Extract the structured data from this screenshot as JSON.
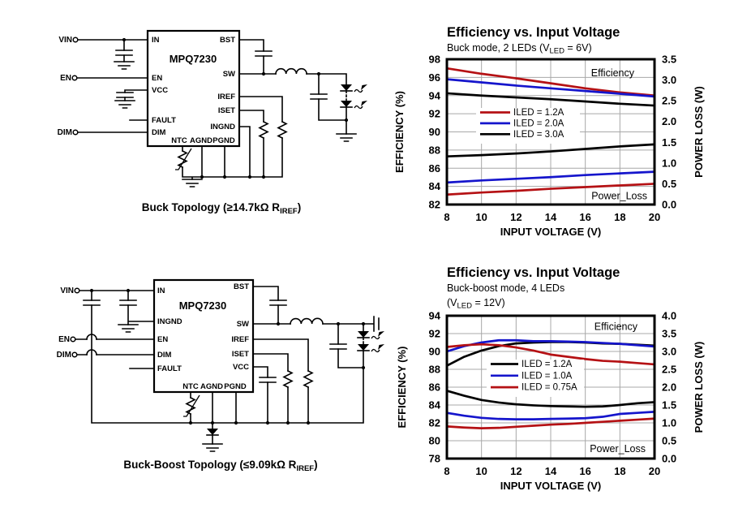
{
  "colors": {
    "red": "#b51114",
    "blue": "#1515cc",
    "black": "#000000",
    "grid": "#a8a8a8"
  },
  "circuits": {
    "buck": {
      "chip_label": "MPQ7230",
      "terminal_vin": "VIN",
      "terminal_en": "EN",
      "terminal_dim": "DIM",
      "pin_in": "IN",
      "pin_en": "EN",
      "pin_vcc": "VCC",
      "pin_fault": "FAULT",
      "pin_dim": "DIM",
      "pin_bst": "BST",
      "pin_sw": "SW",
      "pin_iref": "IREF",
      "pin_iset": "ISET",
      "pin_ingnd": "INGND",
      "pin_ntc": "NTC",
      "pin_agnd": "AGND",
      "pin_pgnd": "PGND",
      "caption_prefix": "Buck Topology (≥14.7kΩ R",
      "caption_sub": "IREF",
      "caption_suffix": ")"
    },
    "buck_boost": {
      "chip_label": "MPQ7230",
      "terminal_vin": "VIN",
      "terminal_en": "EN",
      "terminal_dim": "DIM",
      "pin_in": "IN",
      "pin_ingnd": "INGND",
      "pin_en": "EN",
      "pin_dim": "DIM",
      "pin_fault": "FAULT",
      "pin_bst": "BST",
      "pin_sw": "SW",
      "pin_iref": "IREF",
      "pin_iset": "ISET",
      "pin_vcc": "VCC",
      "pin_ntc": "NTC",
      "pin_agnd": "AGND",
      "pin_pgnd": "PGND",
      "caption_prefix": "Buck-Boost Topology (≤9.09kΩ R",
      "caption_sub": "IREF",
      "caption_suffix": ")"
    }
  },
  "chart_data": [
    {
      "type": "line",
      "title": "Efficiency vs. Input Voltage",
      "subtitle_pre": "Buck mode, 2 LEDs (V",
      "subtitle_sub": "LED",
      "subtitle_post": " = 6V)",
      "xlabel": "INPUT VOLTAGE (V)",
      "ylabel_left": "EFFICIENCY (%)",
      "ylabel_right": "POWER LOSS (W)",
      "xlim": [
        8,
        20
      ],
      "x_ticks": [
        8,
        10,
        12,
        14,
        16,
        18,
        20
      ],
      "ylim_left": [
        82,
        98
      ],
      "yticks_left": [
        82,
        84,
        86,
        88,
        90,
        92,
        94,
        96,
        98
      ],
      "ylim_right": [
        0,
        3.5
      ],
      "yticks_right": [
        0,
        0.5,
        1,
        1.5,
        2,
        2.5,
        3,
        3.5
      ],
      "yticks_right_labels": [
        "0.0",
        "0.5",
        "1.0",
        "1.5",
        "2.0",
        "2.5",
        "3.0",
        "3.5"
      ],
      "label_efficiency": "Efficiency",
      "label_power_loss": "Power_Loss",
      "grid": true,
      "legend_position": "mid-left-inside",
      "x": [
        8,
        10,
        12,
        14,
        16,
        18,
        20
      ],
      "efficiency_series": [
        {
          "name": "ILED = 1.2A",
          "color": "red",
          "values": [
            97.0,
            96.4,
            95.9,
            95.35,
            94.8,
            94.35,
            94.0
          ]
        },
        {
          "name": "ILED = 2.0A",
          "color": "blue",
          "values": [
            95.8,
            95.45,
            95.1,
            94.8,
            94.5,
            94.2,
            93.9
          ]
        },
        {
          "name": "ILED = 3.0A",
          "color": "black",
          "values": [
            94.25,
            94.0,
            93.8,
            93.6,
            93.35,
            93.1,
            92.9
          ]
        }
      ],
      "power_loss_series": [
        {
          "name": "ILED = 1.2A",
          "color": "red",
          "values": [
            0.24,
            0.29,
            0.33,
            0.38,
            0.42,
            0.46,
            0.5
          ]
        },
        {
          "name": "ILED = 2.0A",
          "color": "blue",
          "values": [
            0.53,
            0.58,
            0.62,
            0.66,
            0.71,
            0.75,
            0.79
          ]
        },
        {
          "name": "ILED = 3.0A",
          "color": "black",
          "values": [
            1.16,
            1.19,
            1.23,
            1.28,
            1.34,
            1.4,
            1.45
          ]
        }
      ]
    },
    {
      "type": "line",
      "title": "Efficiency vs. Input Voltage",
      "subtitle_line1": "Buck-boost mode, 4 LEDs",
      "subtitle_pre": "(V",
      "subtitle_sub": "LED",
      "subtitle_post": " = 12V)",
      "xlabel": "INPUT VOLTAGE (V)",
      "ylabel_left": "EFFICIENCY (%)",
      "ylabel_right": "POWER LOSS (W)",
      "xlim": [
        8,
        20
      ],
      "x_ticks": [
        8,
        10,
        12,
        14,
        16,
        18,
        20
      ],
      "ylim_left": [
        78,
        94
      ],
      "yticks_left": [
        78,
        80,
        82,
        84,
        86,
        88,
        90,
        92,
        94
      ],
      "ylim_right": [
        0,
        4
      ],
      "yticks_right": [
        0,
        0.5,
        1,
        1.5,
        2,
        2.5,
        3,
        3.5,
        4
      ],
      "yticks_right_labels": [
        "0.0",
        "0.5",
        "1.0",
        "1.5",
        "2.0",
        "2.5",
        "3.0",
        "3.5",
        "4.0"
      ],
      "label_efficiency": "Efficiency",
      "label_power_loss": "Power_Loss",
      "grid": true,
      "legend_position": "mid-left-inside",
      "x": [
        8,
        9,
        10,
        11,
        12,
        13,
        14,
        15,
        16,
        17,
        18,
        19,
        20
      ],
      "efficiency_series": [
        {
          "name": "ILED = 1.2A",
          "color": "black",
          "values": [
            88.4,
            89.4,
            90.1,
            90.6,
            90.9,
            91.0,
            91.05,
            91.05,
            91.0,
            90.9,
            90.85,
            90.75,
            90.65
          ]
        },
        {
          "name": "ILED = 1.0A",
          "color": "blue",
          "values": [
            90.0,
            90.6,
            91.0,
            91.25,
            91.25,
            91.15,
            91.15,
            91.1,
            91.05,
            90.95,
            90.85,
            90.7,
            90.55
          ]
        },
        {
          "name": "ILED = 0.75A",
          "color": "red",
          "values": [
            90.5,
            90.7,
            90.8,
            90.7,
            90.45,
            90.1,
            89.65,
            89.4,
            89.15,
            88.95,
            88.85,
            88.7,
            88.55
          ]
        }
      ],
      "power_loss_series": [
        {
          "name": "ILED = 1.2A",
          "color": "black",
          "values": [
            1.9,
            1.76,
            1.64,
            1.57,
            1.52,
            1.49,
            1.47,
            1.46,
            1.45,
            1.46,
            1.5,
            1.55,
            1.58
          ]
        },
        {
          "name": "ILED = 1.0A",
          "color": "blue",
          "values": [
            1.28,
            1.2,
            1.14,
            1.11,
            1.1,
            1.1,
            1.11,
            1.12,
            1.13,
            1.17,
            1.25,
            1.28,
            1.31
          ]
        },
        {
          "name": "ILED = 0.75A",
          "color": "red",
          "values": [
            0.9,
            0.87,
            0.85,
            0.86,
            0.89,
            0.92,
            0.95,
            0.97,
            1.0,
            1.03,
            1.06,
            1.09,
            1.12
          ]
        }
      ]
    }
  ]
}
